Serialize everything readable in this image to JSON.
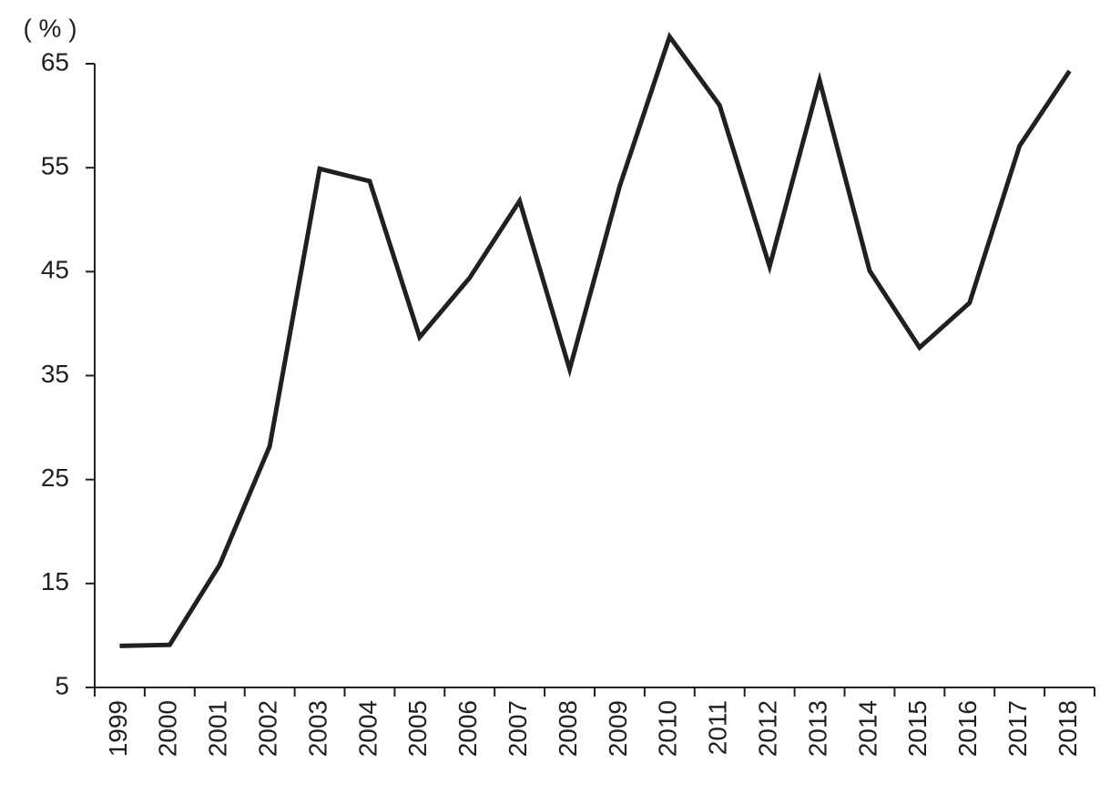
{
  "chart_data": {
    "type": "line",
    "y_label": "( % )",
    "categories": [
      "1999",
      "2000",
      "2001",
      "2002",
      "2003",
      "2004",
      "2005",
      "2006",
      "2007",
      "2008",
      "2009",
      "2010",
      "2011",
      "2012",
      "2013",
      "2014",
      "2015",
      "2016",
      "2017",
      "2018"
    ],
    "values": [
      9.0,
      9.1,
      16.8,
      28.2,
      54.9,
      53.7,
      38.7,
      44.4,
      51.8,
      35.6,
      53.2,
      67.6,
      61.0,
      45.5,
      63.4,
      45.1,
      37.7,
      42.0,
      57.1,
      64.3
    ],
    "color": "#231f20",
    "ylim": [
      5,
      65
    ],
    "yticks": [
      5,
      15,
      25,
      35,
      45,
      55,
      65
    ],
    "grid": false
  }
}
